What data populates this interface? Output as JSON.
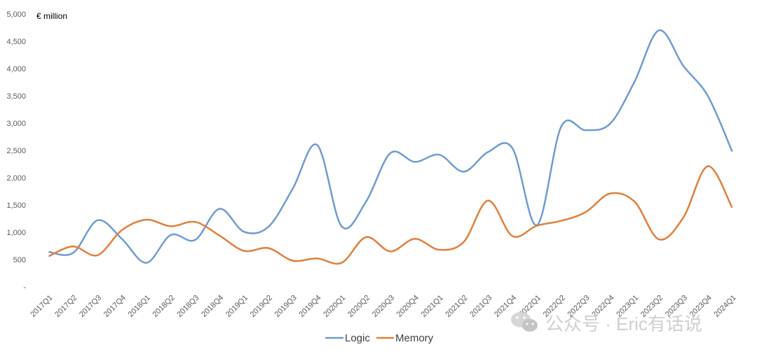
{
  "chart_data": {
    "type": "line",
    "unit_label": "€ million",
    "categories": [
      "2017Q1",
      "2017Q2",
      "2017Q3",
      "2017Q4",
      "2018Q1",
      "2018Q2",
      "2018Q3",
      "2018Q4",
      "2019Q1",
      "2019Q2",
      "2019Q3",
      "2019Q4",
      "2020Q1",
      "2020Q2",
      "2020Q3",
      "2020Q4",
      "2021Q1",
      "2021Q2",
      "2021Q3",
      "2021Q4",
      "2022Q1",
      "2022Q2",
      "2022Q3",
      "2022Q4",
      "2023Q1",
      "2023Q2",
      "2023Q3",
      "2023Q4",
      "2024Q1"
    ],
    "series": [
      {
        "name": "Logic",
        "color": "#6F9BD0",
        "values": [
          640,
          620,
          1220,
          880,
          440,
          950,
          860,
          1430,
          1010,
          1100,
          1800,
          2600,
          1110,
          1560,
          2450,
          2290,
          2420,
          2110,
          2470,
          2540,
          1130,
          2940,
          2870,
          2990,
          3760,
          4700,
          4050,
          3500,
          2480
        ]
      },
      {
        "name": "Memory",
        "color": "#E07F3B",
        "values": [
          560,
          740,
          580,
          1040,
          1230,
          1110,
          1190,
          940,
          660,
          710,
          480,
          520,
          440,
          910,
          650,
          880,
          680,
          820,
          1580,
          930,
          1120,
          1210,
          1370,
          1710,
          1560,
          870,
          1270,
          2210,
          1450
        ]
      }
    ],
    "y_ticks": [
      "-",
      "500",
      "1,000",
      "1,500",
      "2,000",
      "2,500",
      "3,000",
      "3,500",
      "4,000",
      "4,500",
      "5,000"
    ],
    "ylim": [
      0,
      5000
    ],
    "grid": false,
    "legend_position": "bottom-center"
  },
  "watermark": {
    "text": "公众号 · Eric有话说",
    "icon": "wechat-icon"
  }
}
